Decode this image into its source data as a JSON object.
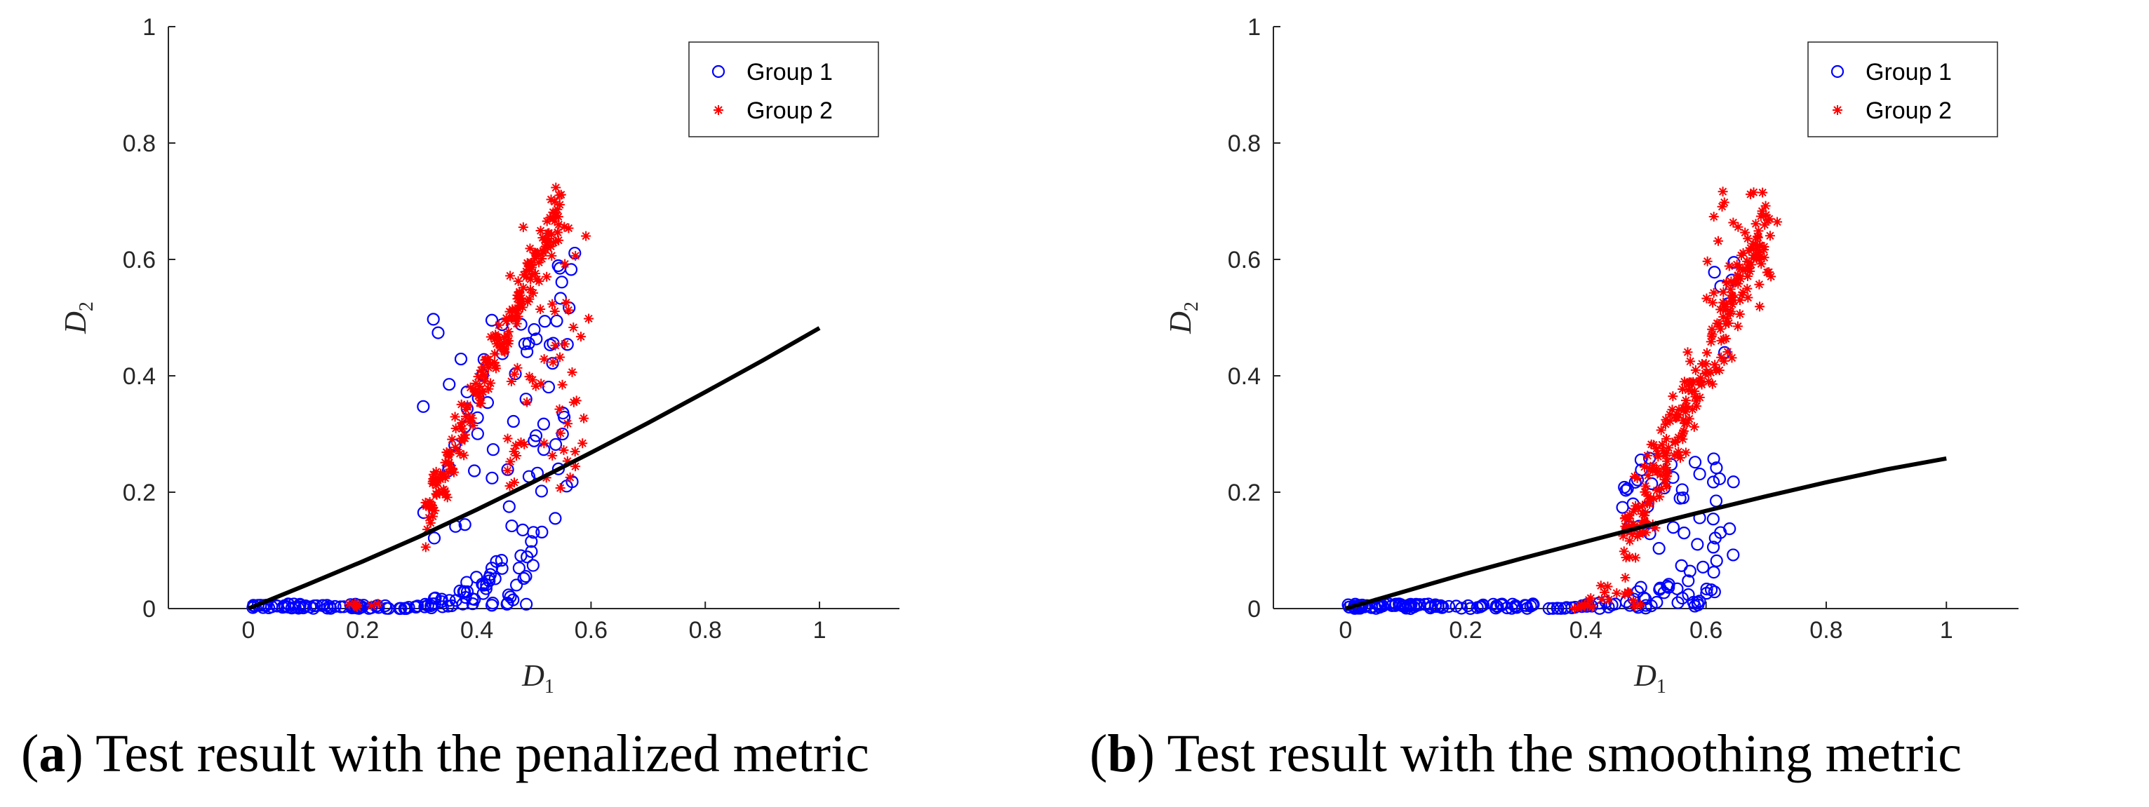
{
  "chart_data": [
    {
      "type": "scatter",
      "panel_label": "a",
      "caption": "Test result with the penalized metric",
      "xlabel": "D",
      "xlabel_sub": "1",
      "ylabel": "D",
      "ylabel_sub": "2",
      "xlim": [
        -0.14,
        1.14
      ],
      "ylim": [
        0,
        1
      ],
      "xticks": [
        "0",
        "0.2",
        "0.4",
        "0.6",
        "0.8",
        "1"
      ],
      "yticks": [
        "0",
        "0.2",
        "0.4",
        "0.6",
        "0.8",
        "1"
      ],
      "legend": {
        "position": "top-right",
        "entries": [
          "Group 1",
          "Group 2"
        ]
      },
      "colors": {
        "group1": "#0000ff",
        "group2": "#ff0000",
        "boundary": "#000000"
      },
      "boundary": {
        "x": [
          0,
          0.1,
          0.2,
          0.3,
          0.4,
          0.5,
          0.6,
          0.7,
          0.8,
          0.9,
          1.0
        ],
        "y": [
          0,
          0.04,
          0.081,
          0.124,
          0.17,
          0.218,
          0.268,
          0.319,
          0.372,
          0.426,
          0.482
        ]
      },
      "groups": [
        {
          "name": "Group 1",
          "marker": "circle",
          "seed": 11,
          "generators": [
            {
              "kind": "band",
              "n": 60,
              "x0": 0.0,
              "x1": 0.25,
              "y0": 0.0,
              "y1": 0.008
            },
            {
              "kind": "cloud",
              "n": 70,
              "x0": 0.26,
              "x1": 0.5,
              "ylo": 0.0,
              "yhi": 0.14,
              "curve": 1.6
            },
            {
              "kind": "rect",
              "n": 60,
              "x0": 0.3,
              "x1": 0.57,
              "y0": 0.12,
              "y1": 0.5
            },
            {
              "kind": "rect",
              "n": 10,
              "x0": 0.5,
              "x1": 0.58,
              "y0": 0.45,
              "y1": 0.62
            }
          ]
        },
        {
          "name": "Group 2",
          "marker": "star",
          "seed": 23,
          "generators": [
            {
              "kind": "band",
              "n": 8,
              "x0": 0.17,
              "x1": 0.25,
              "y0": 0.0,
              "y1": 0.01
            },
            {
              "kind": "ridge",
              "n": 200,
              "x0": 0.31,
              "x1": 0.55,
              "slope": 2.25,
              "base": 0.16,
              "spread": 0.1
            },
            {
              "kind": "rect",
              "n": 70,
              "x0": 0.45,
              "x1": 0.6,
              "y0": 0.2,
              "y1": 0.66
            }
          ]
        }
      ]
    },
    {
      "type": "scatter",
      "panel_label": "b",
      "caption": "Test result with the smoothing metric",
      "xlabel": "D",
      "xlabel_sub": "1",
      "ylabel": "D",
      "ylabel_sub": "2",
      "xlim": [
        -0.12,
        1.12
      ],
      "ylim": [
        0,
        1
      ],
      "xticks": [
        "0",
        "0.2",
        "0.4",
        "0.6",
        "0.8",
        "1"
      ],
      "yticks": [
        "0",
        "0.2",
        "0.4",
        "0.6",
        "0.8",
        "1"
      ],
      "legend": {
        "position": "top-right",
        "entries": [
          "Group 1",
          "Group 2"
        ]
      },
      "colors": {
        "group1": "#0000ff",
        "group2": "#ff0000",
        "boundary": "#000000"
      },
      "boundary": {
        "x": [
          0,
          0.1,
          0.2,
          0.3,
          0.4,
          0.5,
          0.6,
          0.7,
          0.8,
          0.9,
          1.0
        ],
        "y": [
          0,
          0.03,
          0.06,
          0.088,
          0.115,
          0.142,
          0.168,
          0.193,
          0.217,
          0.239,
          0.258
        ]
      },
      "groups": [
        {
          "name": "Group 1",
          "marker": "circle",
          "seed": 37,
          "generators": [
            {
              "kind": "band",
              "n": 90,
              "x0": 0.0,
              "x1": 0.33,
              "y0": 0.0,
              "y1": 0.008
            },
            {
              "kind": "cloud",
              "n": 60,
              "x0": 0.33,
              "x1": 0.62,
              "ylo": 0.0,
              "yhi": 0.12,
              "curve": 2.0
            },
            {
              "kind": "rect",
              "n": 40,
              "x0": 0.45,
              "x1": 0.65,
              "y0": 0.08,
              "y1": 0.26
            },
            {
              "kind": "rect",
              "n": 6,
              "x0": 0.6,
              "x1": 0.7,
              "y0": 0.4,
              "y1": 0.61
            }
          ]
        },
        {
          "name": "Group 2",
          "marker": "star",
          "seed": 53,
          "generators": [
            {
              "kind": "cloud",
              "n": 20,
              "x0": 0.38,
              "x1": 0.5,
              "ylo": 0.0,
              "yhi": 0.15,
              "curve": 1.2
            },
            {
              "kind": "ridge",
              "n": 230,
              "x0": 0.46,
              "x1": 0.7,
              "slope": 2.3,
              "base": 0.1,
              "spread": 0.16
            },
            {
              "kind": "rect",
              "n": 30,
              "x0": 0.6,
              "x1": 0.72,
              "y0": 0.5,
              "y1": 0.72
            }
          ]
        }
      ]
    }
  ]
}
